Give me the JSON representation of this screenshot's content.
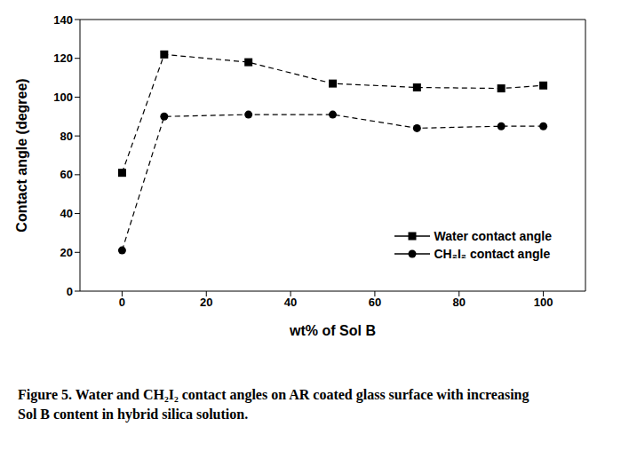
{
  "chart_data": {
    "type": "line",
    "x_label": "wt% of Sol B",
    "y_label": "Contact angle (degree)",
    "caption": "Figure 5. Water and CH₂I₂ contact angles on AR coated glass surface with increasing Sol B content in hybrid silica solution.",
    "x": [
      0,
      10,
      30,
      50,
      70,
      90,
      100
    ],
    "xlim": [
      -10,
      110
    ],
    "xticks": [
      0,
      20,
      40,
      60,
      80,
      100
    ],
    "ylim": [
      0,
      140
    ],
    "yticks": [
      0,
      20,
      40,
      60,
      80,
      100,
      120,
      140
    ],
    "grid": false,
    "legend": "lower right",
    "series": [
      {
        "name": "Water contact angle",
        "color": "#000000",
        "marker": "square",
        "line_style": "dashed",
        "values": [
          61,
          122,
          118,
          107,
          105,
          104.5,
          106
        ]
      },
      {
        "name": "CH₂I₂ contact angle",
        "color": "#000000",
        "marker": "circle",
        "line_style": "dashed",
        "values": [
          21,
          90,
          91,
          91,
          84,
          85,
          85
        ]
      }
    ]
  }
}
